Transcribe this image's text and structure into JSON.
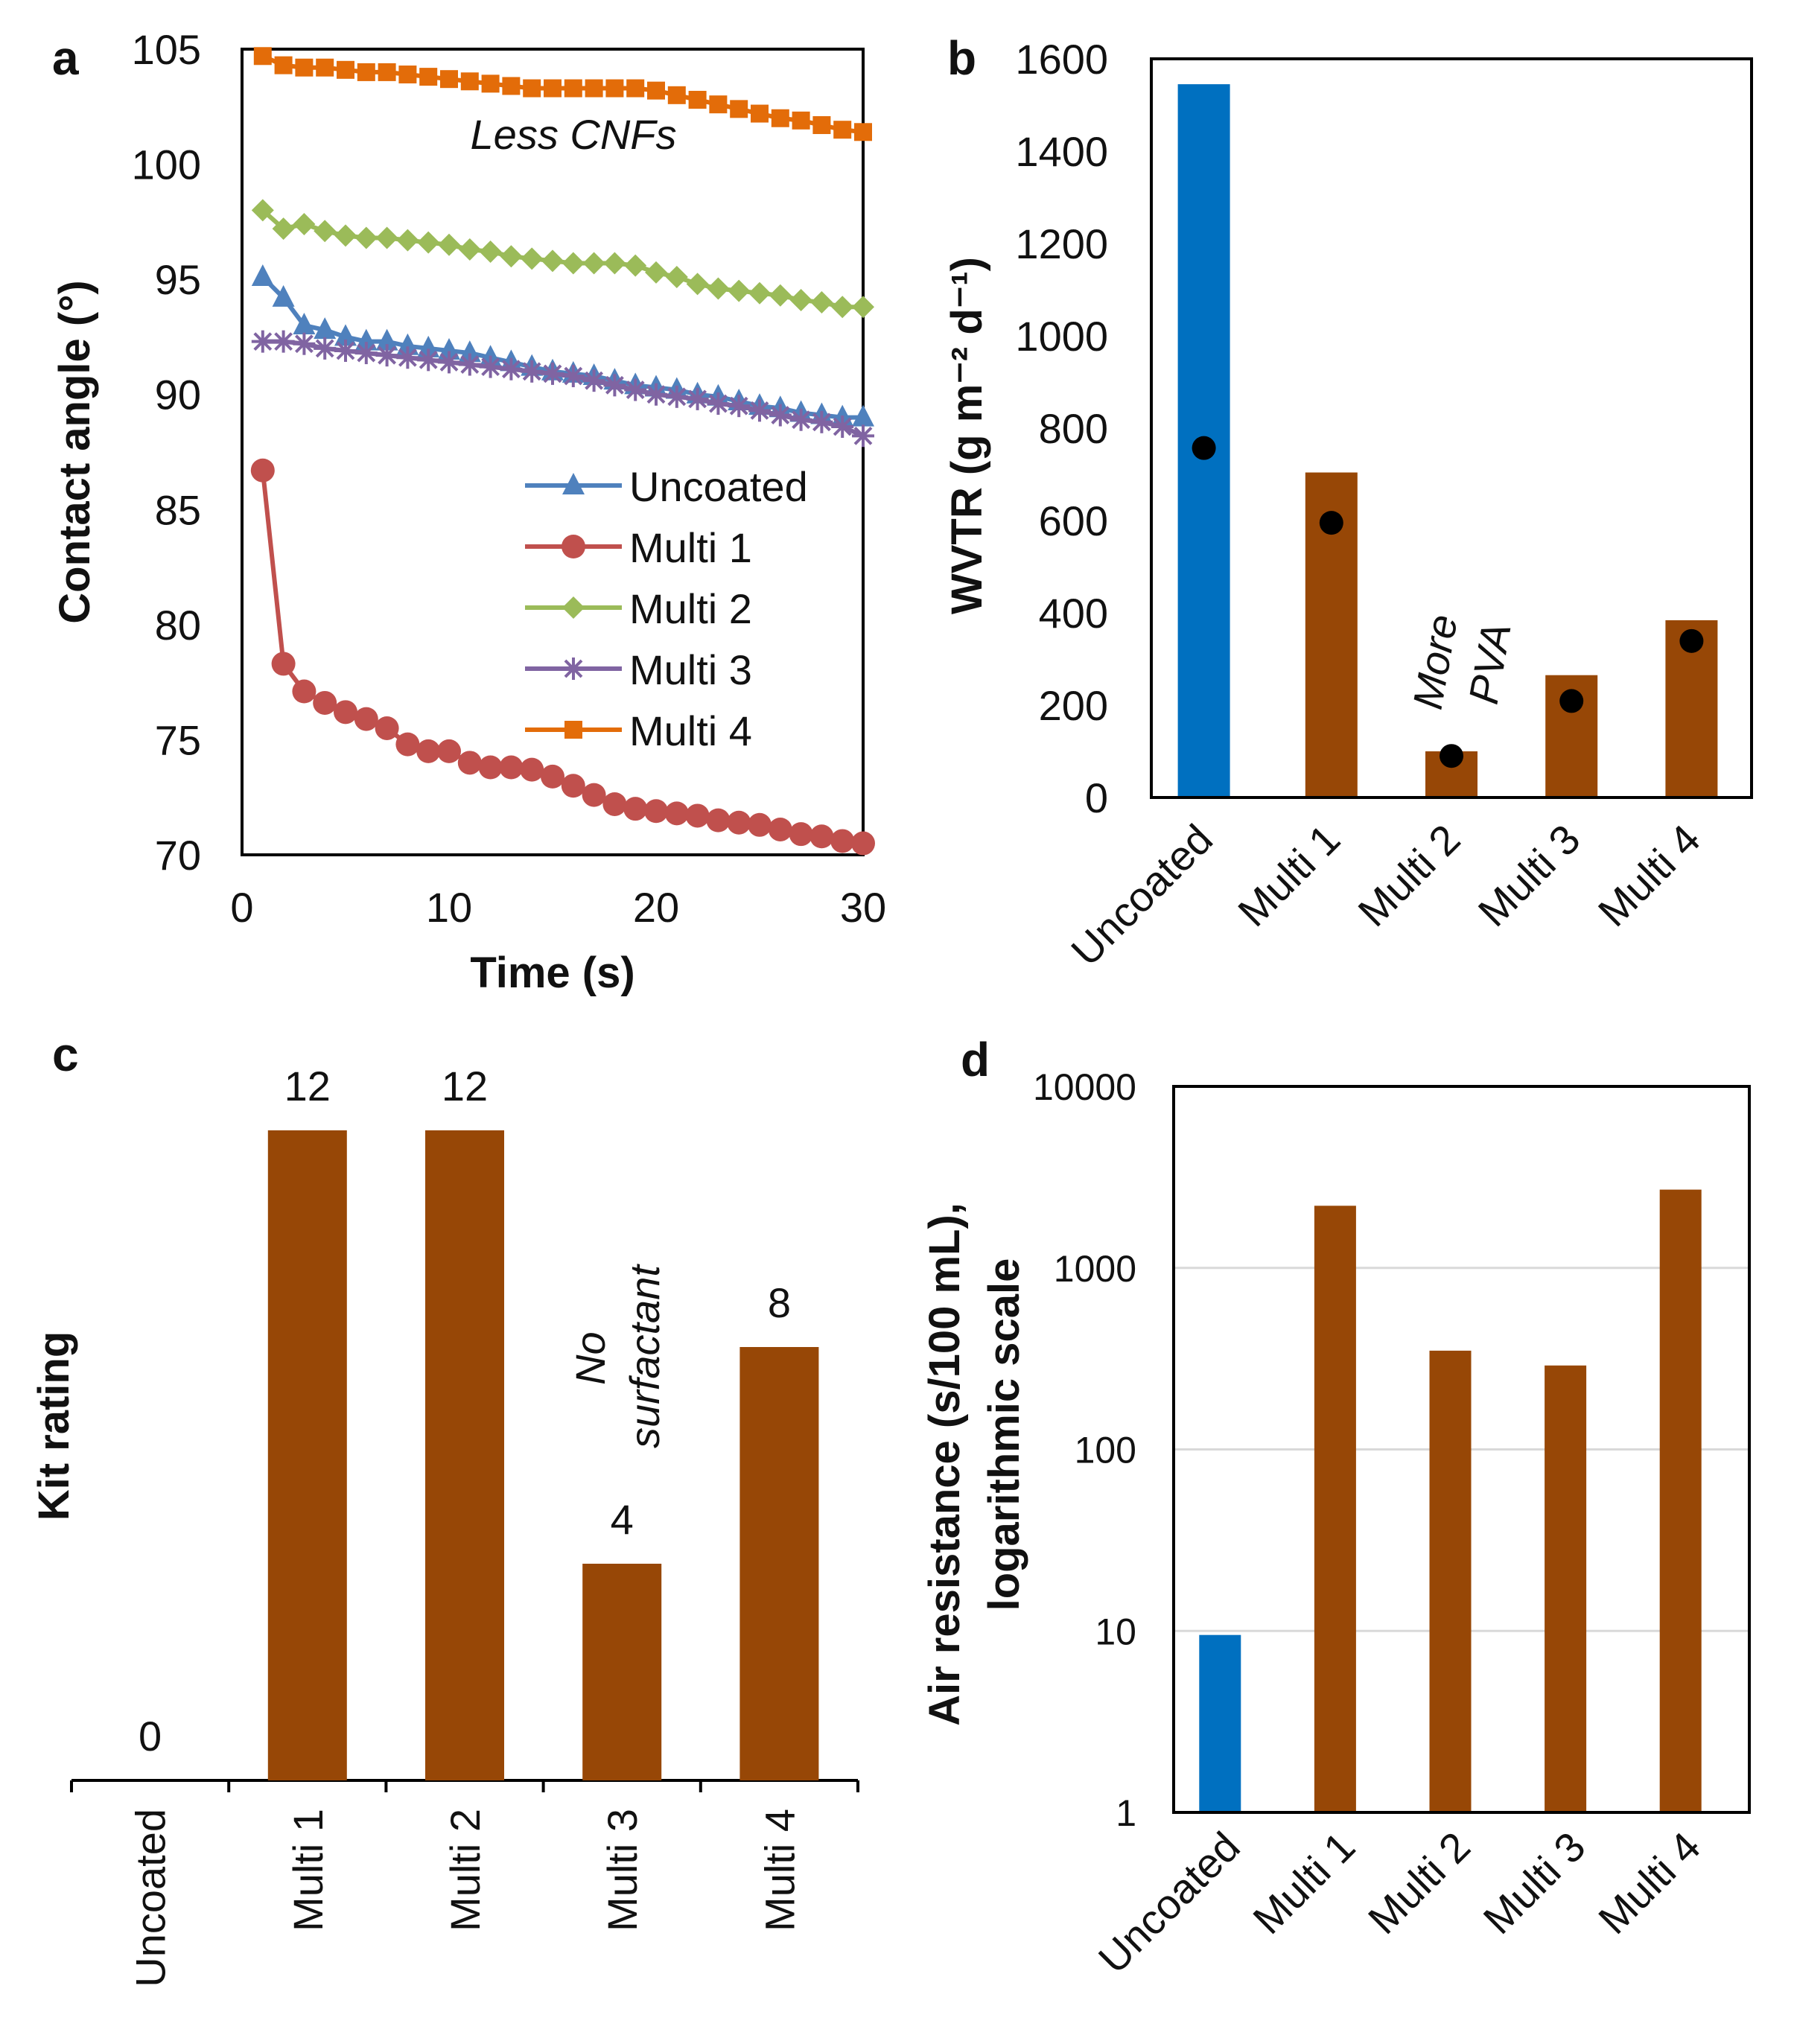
{
  "chart_data": [
    {
      "panel": "a",
      "type": "line",
      "xlabel": "Time (s)",
      "ylabel": "Contact angle (°)",
      "xlim": [
        0,
        30
      ],
      "ylim": [
        70,
        105
      ],
      "xticks": [
        "0",
        "10",
        "20",
        "30"
      ],
      "yticks": [
        "70",
        "75",
        "80",
        "85",
        "90",
        "95",
        "100",
        "105"
      ],
      "annotation": "Less CNFs",
      "legend": "center-right",
      "x": [
        1,
        2,
        3,
        4,
        5,
        6,
        7,
        8,
        9,
        10,
        11,
        12,
        13,
        14,
        15,
        16,
        17,
        18,
        19,
        20,
        21,
        22,
        23,
        24,
        25,
        26,
        27,
        28,
        29,
        30
      ],
      "series": [
        {
          "name": "Uncoated",
          "color": "#4f81bd",
          "marker": "triangle",
          "values": [
            95.1,
            94.2,
            93.0,
            92.8,
            92.5,
            92.3,
            92.3,
            92.1,
            92.0,
            91.9,
            91.8,
            91.6,
            91.4,
            91.2,
            91.0,
            90.9,
            90.8,
            90.6,
            90.4,
            90.3,
            90.2,
            90.0,
            89.9,
            89.7,
            89.5,
            89.4,
            89.2,
            89.1,
            89.0,
            89.0
          ]
        },
        {
          "name": "Multi 1",
          "color": "#c0504d",
          "marker": "circle",
          "values": [
            86.7,
            78.3,
            77.1,
            76.6,
            76.2,
            75.9,
            75.5,
            74.8,
            74.5,
            74.5,
            74.0,
            73.8,
            73.8,
            73.7,
            73.4,
            73.0,
            72.6,
            72.2,
            72.0,
            71.9,
            71.8,
            71.7,
            71.5,
            71.4,
            71.3,
            71.1,
            70.9,
            70.8,
            70.6,
            70.5
          ]
        },
        {
          "name": "Multi 2",
          "color": "#9bbb59",
          "marker": "diamond",
          "values": [
            98.0,
            97.2,
            97.4,
            97.1,
            96.9,
            96.8,
            96.8,
            96.7,
            96.6,
            96.5,
            96.3,
            96.2,
            96.0,
            95.9,
            95.8,
            95.7,
            95.7,
            95.7,
            95.6,
            95.3,
            95.1,
            94.8,
            94.6,
            94.5,
            94.4,
            94.3,
            94.1,
            94.0,
            93.8,
            93.8
          ]
        },
        {
          "name": "Multi 3",
          "color": "#8064a2",
          "marker": "star",
          "values": [
            92.3,
            92.3,
            92.2,
            92.0,
            91.9,
            91.8,
            91.7,
            91.6,
            91.5,
            91.4,
            91.3,
            91.2,
            91.1,
            91.0,
            90.9,
            90.8,
            90.6,
            90.4,
            90.2,
            90.0,
            89.9,
            89.8,
            89.6,
            89.5,
            89.3,
            89.1,
            88.9,
            88.8,
            88.6,
            88.2
          ]
        },
        {
          "name": "Multi 4",
          "color": "#e36c09",
          "marker": "square",
          "values": [
            104.7,
            104.3,
            104.2,
            104.2,
            104.1,
            104.0,
            104.0,
            103.9,
            103.8,
            103.7,
            103.6,
            103.5,
            103.4,
            103.3,
            103.3,
            103.3,
            103.3,
            103.3,
            103.3,
            103.2,
            103.0,
            102.8,
            102.6,
            102.4,
            102.2,
            102.0,
            101.9,
            101.7,
            101.5,
            101.4
          ]
        }
      ]
    },
    {
      "panel": "b",
      "type": "bar",
      "ylabel": "WVTR (g m⁻² d⁻¹)",
      "ylim": [
        0,
        1600
      ],
      "yticks": [
        "0",
        "200",
        "400",
        "600",
        "800",
        "1000",
        "1200",
        "1400",
        "1600"
      ],
      "categories": [
        "Uncoated",
        "Multi 1",
        "Multi 2",
        "Multi 3",
        "Multi 4"
      ],
      "values": [
        1545,
        704,
        100,
        265,
        384
      ],
      "dot_values": [
        757,
        595,
        90,
        209,
        339
      ],
      "bar_colors": [
        "#0070c0",
        "#974706",
        "#974706",
        "#974706",
        "#974706"
      ],
      "annotation": [
        "More",
        "PVA"
      ]
    },
    {
      "panel": "c",
      "type": "bar",
      "ylabel": "Kit rating",
      "ylim": [
        0,
        12
      ],
      "categories": [
        "Uncoated",
        "Multi 1",
        "Multi 2",
        "Multi 3",
        "Multi 4"
      ],
      "values": [
        0,
        12,
        12,
        4,
        8
      ],
      "data_labels": [
        "0",
        "12",
        "12",
        "4",
        "8"
      ],
      "bar_color": "#974706",
      "annotation": [
        "No",
        "surfactant"
      ]
    },
    {
      "panel": "d",
      "type": "bar",
      "ylabel": [
        "Air resistance (s/100 mL),",
        "logarithmic scale"
      ],
      "yscale": "log",
      "ylim": [
        1,
        10000
      ],
      "yticks": [
        "1",
        "10",
        "100",
        "1000",
        "10000"
      ],
      "grid": true,
      "categories": [
        "Uncoated",
        "Multi 1",
        "Multi 2",
        "Multi 3",
        "Multi 4"
      ],
      "values": [
        9.5,
        2200,
        350,
        290,
        2700
      ],
      "bar_colors": [
        "#0070c0",
        "#974706",
        "#974706",
        "#974706",
        "#974706"
      ]
    }
  ]
}
